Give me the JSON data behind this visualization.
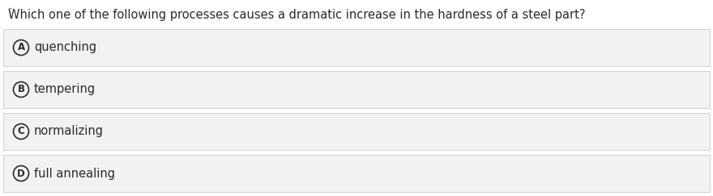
{
  "question_parts": [
    {
      "text": "Which one of the following processes causes a dramatic ",
      "style": "normal"
    },
    {
      "text": "increase",
      "style": "underline"
    },
    {
      "text": " in the ",
      "style": "normal"
    },
    {
      "text": "hardness",
      "style": "underline"
    },
    {
      "text": " of a steel part?",
      "style": "normal"
    }
  ],
  "options": [
    {
      "label": "A",
      "text": "quenching"
    },
    {
      "label": "B",
      "text": "tempering"
    },
    {
      "label": "C",
      "text": "normalizing"
    },
    {
      "label": "D",
      "text": "full annealing"
    }
  ],
  "bg_color": "#ffffff",
  "option_bg_color": "#f2f2f2",
  "option_border_color": "#cccccc",
  "text_color": "#2b2b2b",
  "circle_color": "#2b2b2b",
  "font_size": 10.5,
  "question_font_size": 10.5
}
